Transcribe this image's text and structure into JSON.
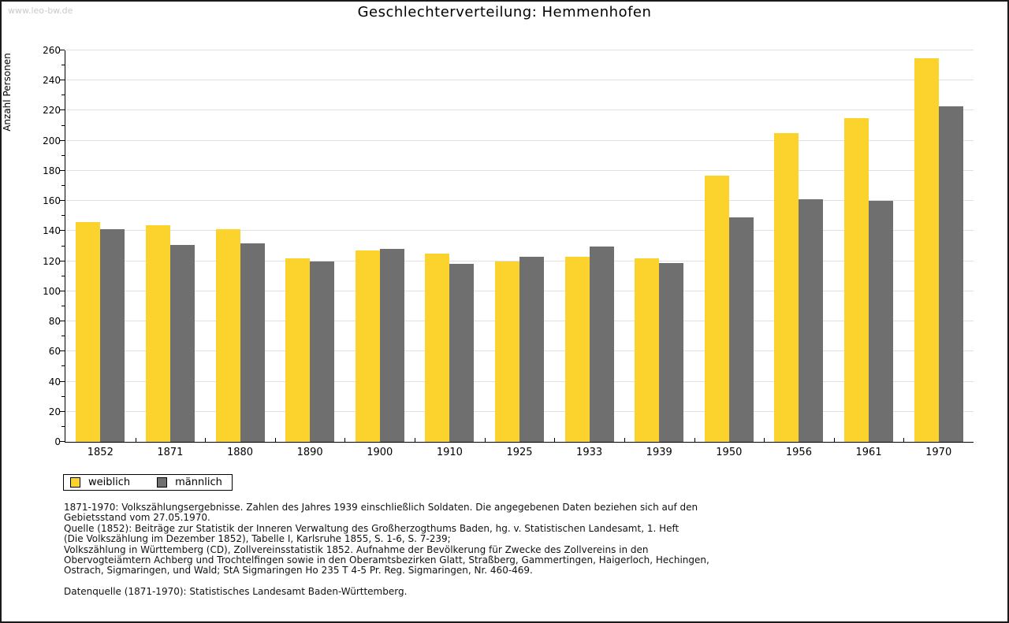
{
  "page": {
    "watermark": "www.leo-bw.de",
    "title": "Geschlechterverteilung: Hemmenhofen"
  },
  "chart_data": {
    "type": "bar",
    "title": "Geschlechterverteilung: Hemmenhofen",
    "xlabel": "",
    "ylabel": "Anzahl Personen",
    "ylim": [
      0,
      260
    ],
    "ytick_step": 20,
    "yminor_step": 10,
    "grid": true,
    "legend_position": "bottom-left",
    "categories": [
      "1852",
      "1871",
      "1880",
      "1890",
      "1900",
      "1910",
      "1925",
      "1933",
      "1939",
      "1950",
      "1956",
      "1961",
      "1970"
    ],
    "series": [
      {
        "name": "weiblich",
        "color": "#fcd32d",
        "values": [
          146,
          144,
          141,
          122,
          127,
          125,
          120,
          123,
          122,
          177,
          205,
          215,
          255
        ]
      },
      {
        "name": "männlich",
        "color": "#6f6f6f",
        "values": [
          141,
          131,
          132,
          120,
          128,
          118,
          123,
          130,
          119,
          149,
          161,
          160,
          223
        ]
      }
    ]
  },
  "footnotes": {
    "lines": [
      "1871-1970: Volkszählungsergebnisse. Zahlen des Jahres 1939 einschließlich Soldaten. Die angegebenen Daten beziehen sich auf den",
      "Gebietsstand vom 27.05.1970.",
      "Quelle (1852): Beiträge zur Statistik der Inneren Verwaltung des Großherzogthums Baden, hg. v. Statistischen Landesamt, 1. Heft",
      "(Die Volkszählung im Dezember 1852), Tabelle I, Karlsruhe 1855, S. 1-6, S. 7-239;",
      "Volkszählung in Württemberg (CD), Zollvereinsstatistik 1852. Aufnahme der Bevölkerung für Zwecke des Zollvereins in den",
      "Obervogteiämtern Achberg und Trochtelfingen sowie in den Oberamtsbezirken Glatt, Straßberg, Gammertingen, Haigerloch, Hechingen,",
      "Ostrach, Sigmaringen, und Wald; StA Sigmaringen Ho 235 T 4-5 Pr. Reg. Sigmaringen, Nr. 460-469."
    ],
    "datasource": "Datenquelle (1871-1970): Statistisches Landesamt Baden-Württemberg."
  }
}
